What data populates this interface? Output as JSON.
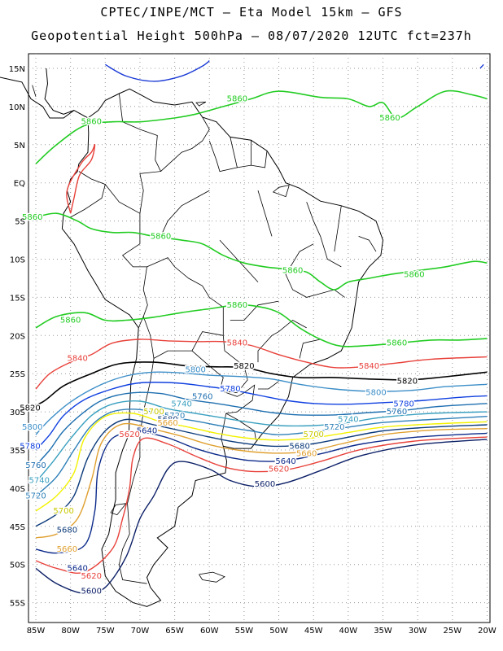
{
  "header": {
    "line1": "CPTEC/INPE/MCT –  Eta Model 15km – GFS",
    "line2": "Geopotential Height 500hPa – 08/07/2020 12UTC fct=237h"
  },
  "axes": {
    "lat_labels": [
      "15N",
      "10N",
      "5N",
      "EQ",
      "5S",
      "10S",
      "15S",
      "20S",
      "25S",
      "30S",
      "35S",
      "40S",
      "45S",
      "50S",
      "55S"
    ],
    "lon_labels": [
      "85W",
      "80W",
      "75W",
      "70W",
      "65W",
      "60W",
      "55W",
      "50W",
      "45W",
      "40W",
      "35W",
      "30W",
      "25W",
      "20W"
    ]
  },
  "colors": {
    "5580": "#1a3ad6",
    "5600": "#0b1f66",
    "5620": "#e8413a",
    "5640": "#0c2a8a",
    "5660": "#e0a030",
    "5680": "#0b3a7a",
    "5700": "#f2f200",
    "5720": "#2f80b8",
    "5740": "#3aa0c0",
    "5760": "#1e6fb0",
    "5780": "#1040e0",
    "5800": "#3c8ec8",
    "5820": "#000000",
    "5840": "#e8413a",
    "5860": "#22cc22"
  },
  "contour_labels": [
    {
      "text": "5860",
      "level": "5860",
      "lon": -56,
      "lat": 11
    },
    {
      "text": "5860",
      "level": "5860",
      "lon": -34,
      "lat": 8.5
    },
    {
      "text": "5860",
      "level": "5860",
      "lon": -77,
      "lat": 8
    },
    {
      "text": "5860",
      "level": "5860",
      "lon": -85.5,
      "lat": -4.5
    },
    {
      "text": "5860",
      "level": "5860",
      "lon": -67,
      "lat": -7
    },
    {
      "text": "5860",
      "level": "5860",
      "lon": -48,
      "lat": -11.5
    },
    {
      "text": "5860",
      "level": "5860",
      "lon": -30.5,
      "lat": -12
    },
    {
      "text": "5860",
      "level": "5860",
      "lon": -80,
      "lat": -18
    },
    {
      "text": "5860",
      "level": "5860",
      "lon": -56,
      "lat": -16
    },
    {
      "text": "5860",
      "level": "5860",
      "lon": -33,
      "lat": -21
    },
    {
      "text": "5840",
      "level": "5840",
      "lon": -79,
      "lat": -23
    },
    {
      "text": "5840",
      "level": "5840",
      "lon": -56,
      "lat": -21
    },
    {
      "text": "5840",
      "level": "5840",
      "lon": -37,
      "lat": -24
    },
    {
      "text": "5820",
      "level": "5820",
      "lon": -86,
      "lat": -29.5
    },
    {
      "text": "5820",
      "level": "5820",
      "lon": -55,
      "lat": -24
    },
    {
      "text": "5820",
      "level": "5820",
      "lon": -31.5,
      "lat": -26
    },
    {
      "text": "5800",
      "level": "5800",
      "lon": -62,
      "lat": -24.5
    },
    {
      "text": "5800",
      "level": "5800",
      "lon": -36,
      "lat": -27.5
    },
    {
      "text": "5800",
      "level": "5800",
      "lon": -85.5,
      "lat": -32
    },
    {
      "text": "5780",
      "level": "5780",
      "lon": -57,
      "lat": -27
    },
    {
      "text": "5780",
      "level": "5780",
      "lon": -32,
      "lat": -29
    },
    {
      "text": "5780",
      "level": "5780",
      "lon": -86,
      "lat": -34.5
    },
    {
      "text": "5760",
      "level": "5760",
      "lon": -61,
      "lat": -28
    },
    {
      "text": "5760",
      "level": "5760",
      "lon": -33,
      "lat": -30
    },
    {
      "text": "5760",
      "level": "5760",
      "lon": -85,
      "lat": -37
    },
    {
      "text": "5740",
      "level": "5740",
      "lon": -64,
      "lat": -29
    },
    {
      "text": "5740",
      "level": "5740",
      "lon": -40,
      "lat": -31
    },
    {
      "text": "5740",
      "level": "5740",
      "lon": -84.5,
      "lat": -39
    },
    {
      "text": "5720",
      "level": "5720",
      "lon": -65,
      "lat": -30.5
    },
    {
      "text": "5720",
      "level": "5720",
      "lon": -42,
      "lat": -32
    },
    {
      "text": "5720",
      "level": "5720",
      "lon": -85,
      "lat": -41
    },
    {
      "text": "5700",
      "level": "5700",
      "lon": -68,
      "lat": -30
    },
    {
      "text": "5700",
      "level": "5700",
      "lon": -45,
      "lat": -33
    },
    {
      "text": "5700",
      "level": "5700",
      "lon": -81,
      "lat": -43
    },
    {
      "text": "5680",
      "level": "5680",
      "lon": -66,
      "lat": -31
    },
    {
      "text": "5680",
      "level": "5680",
      "lon": -47,
      "lat": -34.5
    },
    {
      "text": "5680",
      "level": "5680",
      "lon": -80.5,
      "lat": -45.5
    },
    {
      "text": "5660",
      "level": "5660",
      "lon": -66,
      "lat": -31.5
    },
    {
      "text": "5660",
      "level": "5660",
      "lon": -46,
      "lat": -35.5
    },
    {
      "text": "5660",
      "level": "5660",
      "lon": -80.5,
      "lat": -48
    },
    {
      "text": "5640",
      "level": "5640",
      "lon": -69,
      "lat": -32.5
    },
    {
      "text": "5640",
      "level": "5640",
      "lon": -49,
      "lat": -36.5
    },
    {
      "text": "5640",
      "level": "5640",
      "lon": -79,
      "lat": -50.5
    },
    {
      "text": "5620",
      "level": "5620",
      "lon": -71.5,
      "lat": -33
    },
    {
      "text": "5620",
      "level": "5620",
      "lon": -50,
      "lat": -37.5
    },
    {
      "text": "5620",
      "level": "5620",
      "lon": -77,
      "lat": -51.5
    },
    {
      "text": "5600",
      "level": "5600",
      "lon": -52,
      "lat": -39.5
    },
    {
      "text": "5600",
      "level": "5600",
      "lon": -77,
      "lat": -53.5
    }
  ]
}
